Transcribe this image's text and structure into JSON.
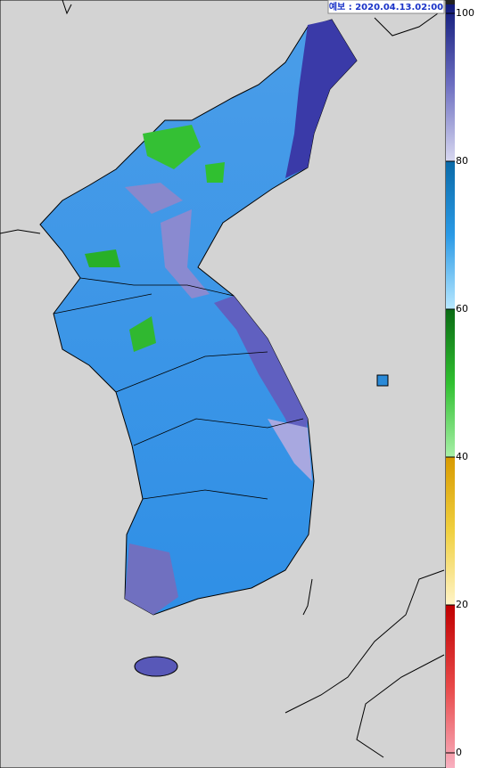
{
  "header": {
    "label": "예보 : 2020.04.13.02:00"
  },
  "colorbar": {
    "ticks": [
      0,
      20,
      40,
      60,
      80,
      100
    ],
    "range": [
      0,
      100
    ]
  }
}
